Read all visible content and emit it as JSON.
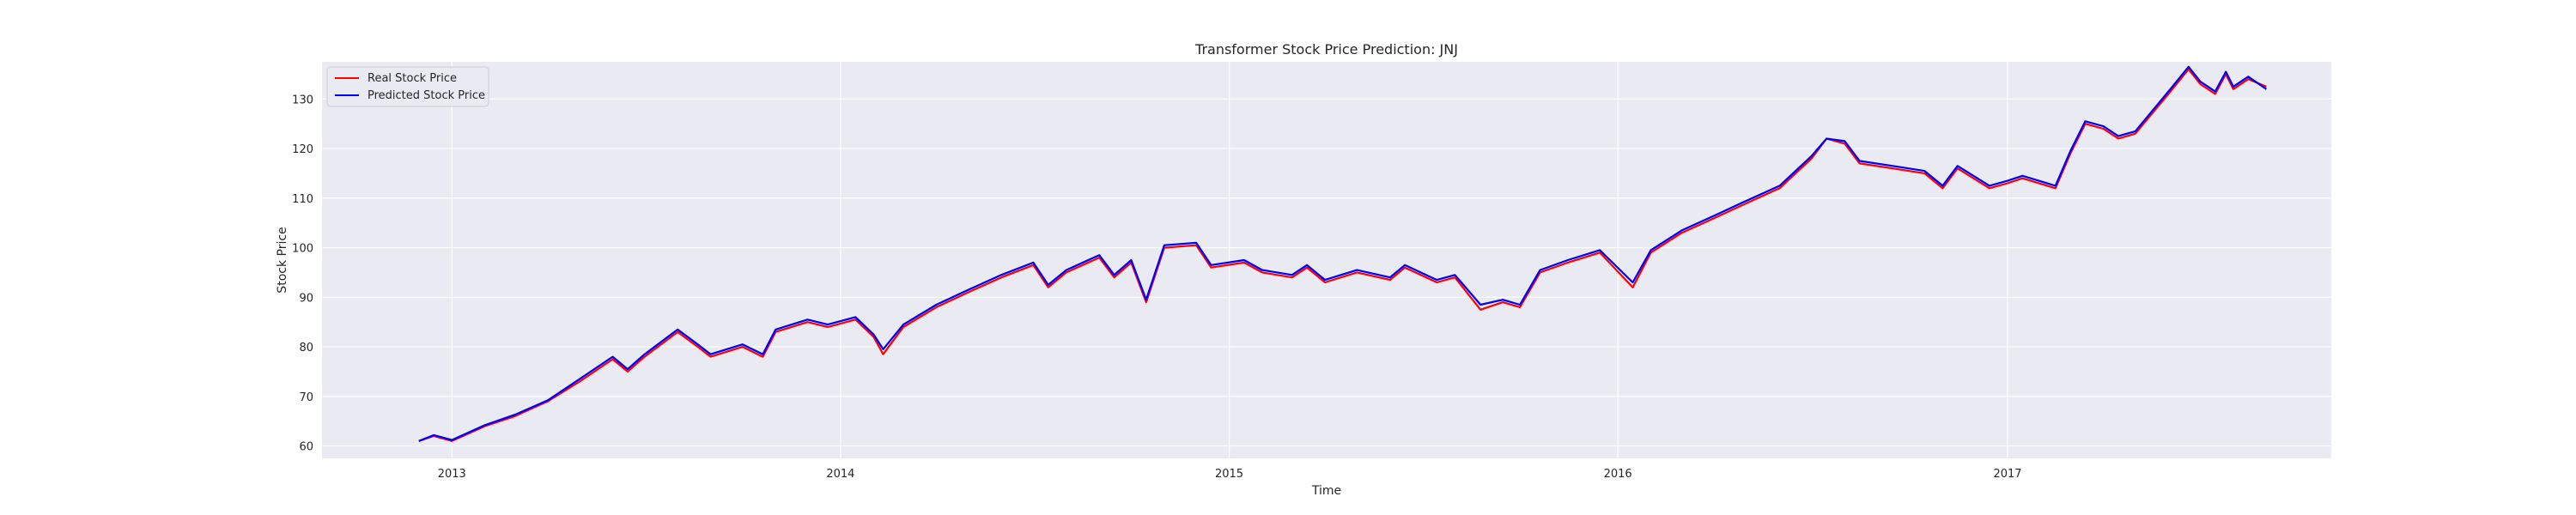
{
  "chart_data": {
    "type": "line",
    "title": "Transformer Stock Price Prediction: JNJ",
    "xlabel": "Time",
    "ylabel": "Stock Price",
    "x_ticks": [
      "2013",
      "2014",
      "2015",
      "2016",
      "2017"
    ],
    "x_range": [
      "2012-09-01",
      "2017-11-01"
    ],
    "y_ticks": [
      "60",
      "70",
      "80",
      "90",
      "100",
      "110",
      "120",
      "130"
    ],
    "ylim": [
      57.5,
      137.5
    ],
    "grid": true,
    "legend_placement": "top-left",
    "series": [
      {
        "name": "Real Stock Price",
        "color": "#ff0000",
        "points": [
          [
            "2012-12-01",
            61.0
          ],
          [
            "2012-12-15",
            62.0
          ],
          [
            "2013-01-01",
            61.0
          ],
          [
            "2013-02-01",
            64.0
          ],
          [
            "2013-03-01",
            66.0
          ],
          [
            "2013-04-01",
            69.0
          ],
          [
            "2013-05-01",
            73.0
          ],
          [
            "2013-06-01",
            77.5
          ],
          [
            "2013-06-15",
            75.0
          ],
          [
            "2013-07-01",
            78.0
          ],
          [
            "2013-08-01",
            83.0
          ],
          [
            "2013-08-20",
            80.0
          ],
          [
            "2013-09-01",
            78.0
          ],
          [
            "2013-10-01",
            80.0
          ],
          [
            "2013-10-20",
            78.0
          ],
          [
            "2013-11-01",
            83.0
          ],
          [
            "2013-12-01",
            85.0
          ],
          [
            "2013-12-20",
            84.0
          ],
          [
            "2014-01-15",
            85.5
          ],
          [
            "2014-02-01",
            82.0
          ],
          [
            "2014-02-10",
            78.5
          ],
          [
            "2014-03-01",
            84.0
          ],
          [
            "2014-04-01",
            88.0
          ],
          [
            "2014-05-01",
            91.0
          ],
          [
            "2014-06-01",
            94.0
          ],
          [
            "2014-07-01",
            96.5
          ],
          [
            "2014-07-15",
            92.0
          ],
          [
            "2014-08-01",
            95.0
          ],
          [
            "2014-09-01",
            98.0
          ],
          [
            "2014-09-15",
            94.0
          ],
          [
            "2014-10-01",
            97.0
          ],
          [
            "2014-10-15",
            89.0
          ],
          [
            "2014-11-01",
            100.0
          ],
          [
            "2014-12-01",
            100.5
          ],
          [
            "2014-12-15",
            96.0
          ],
          [
            "2015-01-15",
            97.0
          ],
          [
            "2015-02-01",
            95.0
          ],
          [
            "2015-03-01",
            94.0
          ],
          [
            "2015-03-15",
            96.0
          ],
          [
            "2015-04-01",
            93.0
          ],
          [
            "2015-05-01",
            95.0
          ],
          [
            "2015-06-01",
            93.5
          ],
          [
            "2015-06-15",
            96.0
          ],
          [
            "2015-07-15",
            93.0
          ],
          [
            "2015-08-01",
            94.0
          ],
          [
            "2015-08-25",
            87.5
          ],
          [
            "2015-09-15",
            89.0
          ],
          [
            "2015-10-01",
            88.0
          ],
          [
            "2015-10-20",
            95.0
          ],
          [
            "2015-11-15",
            97.0
          ],
          [
            "2015-12-15",
            99.0
          ],
          [
            "2016-01-15",
            92.0
          ],
          [
            "2016-02-01",
            99.0
          ],
          [
            "2016-03-01",
            103.0
          ],
          [
            "2016-04-01",
            106.0
          ],
          [
            "2016-05-01",
            109.0
          ],
          [
            "2016-06-01",
            112.0
          ],
          [
            "2016-07-01",
            118.0
          ],
          [
            "2016-07-15",
            122.0
          ],
          [
            "2016-08-01",
            121.0
          ],
          [
            "2016-08-15",
            117.0
          ],
          [
            "2016-09-15",
            116.0
          ],
          [
            "2016-10-15",
            115.0
          ],
          [
            "2016-11-01",
            112.0
          ],
          [
            "2016-11-15",
            116.0
          ],
          [
            "2016-12-15",
            112.0
          ],
          [
            "2017-01-01",
            113.0
          ],
          [
            "2017-01-15",
            114.0
          ],
          [
            "2017-02-15",
            112.0
          ],
          [
            "2017-03-01",
            119.0
          ],
          [
            "2017-03-15",
            125.0
          ],
          [
            "2017-04-01",
            124.0
          ],
          [
            "2017-04-15",
            122.0
          ],
          [
            "2017-05-01",
            123.0
          ],
          [
            "2017-06-01",
            131.0
          ],
          [
            "2017-06-20",
            136.0
          ],
          [
            "2017-07-01",
            133.0
          ],
          [
            "2017-07-15",
            131.0
          ],
          [
            "2017-07-25",
            135.0
          ],
          [
            "2017-08-01",
            132.0
          ],
          [
            "2017-08-15",
            134.0
          ],
          [
            "2017-09-01",
            132.5
          ]
        ]
      },
      {
        "name": "Predicted Stock Price",
        "color": "#0000ff",
        "points": [
          [
            "2012-12-01",
            61.0
          ],
          [
            "2012-12-15",
            62.2
          ],
          [
            "2013-01-01",
            61.2
          ],
          [
            "2013-02-01",
            64.2
          ],
          [
            "2013-03-01",
            66.3
          ],
          [
            "2013-04-01",
            69.2
          ],
          [
            "2013-05-01",
            73.5
          ],
          [
            "2013-06-01",
            78.0
          ],
          [
            "2013-06-15",
            75.5
          ],
          [
            "2013-07-01",
            78.5
          ],
          [
            "2013-08-01",
            83.5
          ],
          [
            "2013-08-20",
            80.5
          ],
          [
            "2013-09-01",
            78.5
          ],
          [
            "2013-10-01",
            80.5
          ],
          [
            "2013-10-20",
            78.5
          ],
          [
            "2013-11-01",
            83.5
          ],
          [
            "2013-12-01",
            85.5
          ],
          [
            "2013-12-20",
            84.5
          ],
          [
            "2014-01-15",
            86.0
          ],
          [
            "2014-02-01",
            82.5
          ],
          [
            "2014-02-10",
            79.5
          ],
          [
            "2014-03-01",
            84.5
          ],
          [
            "2014-04-01",
            88.5
          ],
          [
            "2014-05-01",
            91.5
          ],
          [
            "2014-06-01",
            94.5
          ],
          [
            "2014-07-01",
            97.0
          ],
          [
            "2014-07-15",
            92.5
          ],
          [
            "2014-08-01",
            95.5
          ],
          [
            "2014-09-01",
            98.5
          ],
          [
            "2014-09-15",
            94.5
          ],
          [
            "2014-10-01",
            97.5
          ],
          [
            "2014-10-15",
            89.5
          ],
          [
            "2014-11-01",
            100.5
          ],
          [
            "2014-12-01",
            101.0
          ],
          [
            "2014-12-15",
            96.5
          ],
          [
            "2015-01-15",
            97.5
          ],
          [
            "2015-02-01",
            95.5
          ],
          [
            "2015-03-01",
            94.5
          ],
          [
            "2015-03-15",
            96.5
          ],
          [
            "2015-04-01",
            93.5
          ],
          [
            "2015-05-01",
            95.5
          ],
          [
            "2015-06-01",
            94.0
          ],
          [
            "2015-06-15",
            96.5
          ],
          [
            "2015-07-15",
            93.5
          ],
          [
            "2015-08-01",
            94.5
          ],
          [
            "2015-08-25",
            88.5
          ],
          [
            "2015-09-15",
            89.5
          ],
          [
            "2015-10-01",
            88.5
          ],
          [
            "2015-10-20",
            95.5
          ],
          [
            "2015-11-15",
            97.5
          ],
          [
            "2015-12-15",
            99.5
          ],
          [
            "2016-01-15",
            93.0
          ],
          [
            "2016-02-01",
            99.5
          ],
          [
            "2016-03-01",
            103.5
          ],
          [
            "2016-04-01",
            106.5
          ],
          [
            "2016-05-01",
            109.5
          ],
          [
            "2016-06-01",
            112.5
          ],
          [
            "2016-07-01",
            118.5
          ],
          [
            "2016-07-15",
            122.0
          ],
          [
            "2016-08-01",
            121.5
          ],
          [
            "2016-08-15",
            117.5
          ],
          [
            "2016-09-15",
            116.5
          ],
          [
            "2016-10-15",
            115.5
          ],
          [
            "2016-11-01",
            112.5
          ],
          [
            "2016-11-15",
            116.5
          ],
          [
            "2016-12-15",
            112.5
          ],
          [
            "2017-01-01",
            113.5
          ],
          [
            "2017-01-15",
            114.5
          ],
          [
            "2017-02-15",
            112.5
          ],
          [
            "2017-03-01",
            119.5
          ],
          [
            "2017-03-15",
            125.5
          ],
          [
            "2017-04-01",
            124.5
          ],
          [
            "2017-04-15",
            122.5
          ],
          [
            "2017-05-01",
            123.5
          ],
          [
            "2017-06-01",
            131.5
          ],
          [
            "2017-06-20",
            136.5
          ],
          [
            "2017-07-01",
            133.5
          ],
          [
            "2017-07-15",
            131.5
          ],
          [
            "2017-07-25",
            135.5
          ],
          [
            "2017-08-01",
            132.5
          ],
          [
            "2017-08-15",
            134.5
          ],
          [
            "2017-09-01",
            132.0
          ]
        ]
      }
    ]
  }
}
